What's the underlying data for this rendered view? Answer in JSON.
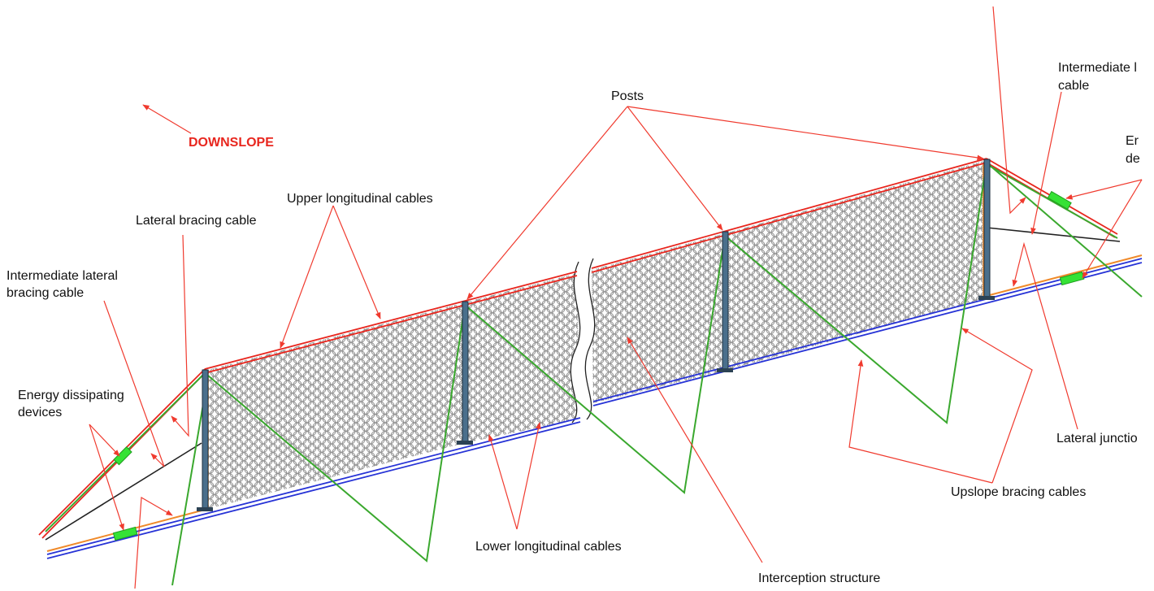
{
  "colors": {
    "annotation": "#f03a2e",
    "upper_cable": "#e8261e",
    "lower_cable": "#2733d6",
    "bracing_cable": "#3aa82e",
    "energy_device": "#35e235",
    "junction_cable": "#f08a2a",
    "post": "#4a6f8c",
    "mesh": "#8c8c8c"
  },
  "labels": {
    "downslope": "DOWNSLOPE",
    "posts": "Posts",
    "upper_longitudinal_cables": "Upper longitudinal cables",
    "lateral_bracing_cable": "Lateral bracing cable",
    "intermediate_lateral_line1": "Intermediate lateral",
    "intermediate_lateral_line2": "bracing cable",
    "energy_dissipating_line1": "Energy dissipating",
    "energy_dissipating_line2": "devices",
    "lower_longitudinal_cables": "Lower longitudinal cables",
    "interception_structure": "Interception structure",
    "upslope_bracing_cables": "Upslope bracing cables",
    "lateral_junction": "Lateral junctio",
    "intermediate_right_line1": "Intermediate l",
    "intermediate_right_line2": "cable",
    "energy_right_line1": "Er",
    "energy_right_line2": "de"
  },
  "icons": [
    "downslope-arrow-icon",
    "rope-mesh-pattern",
    "cut-break-symbol"
  ]
}
